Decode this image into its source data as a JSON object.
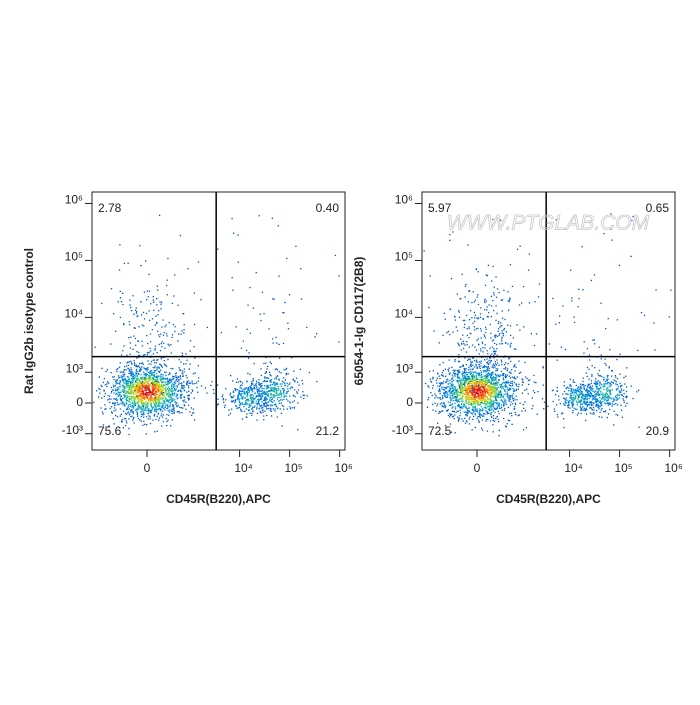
{
  "watermark": "WWW.PTGLAB.COM",
  "chart_data": [
    {
      "type": "flow-quadrant",
      "x_label": "CD45R(B220),APC",
      "y_label": "Rat IgG2b isotype control",
      "xlim": [
        -1760,
        1280000
      ],
      "ylim": [
        -2060,
        1590000
      ],
      "xticks": [
        0,
        {
          "value": 10000,
          "label": "10⁴"
        },
        {
          "value": 100000,
          "label": "10⁵"
        },
        {
          "value": 1000000,
          "label": "10⁶"
        }
      ],
      "yticks": [
        {
          "value": -1000,
          "label": "-10³"
        },
        0,
        {
          "value": 1000,
          "label": "10³"
        },
        {
          "value": 10000,
          "label": "10⁴"
        },
        {
          "value": 100000,
          "label": "10⁵"
        },
        {
          "value": 1000000,
          "label": "10⁶"
        }
      ],
      "gates": {
        "x": 3400,
        "y": 2000
      },
      "values": [
        2.78,
        0.4,
        75.6,
        21.2
      ],
      "value_labels": [
        "2.78",
        "0.40",
        "75.6",
        "21.2"
      ]
    },
    {
      "type": "flow-quadrant",
      "x_label": "CD45R(B220),APC",
      "y_label": "65054-1-Ig CD117(2B8)",
      "xlim": [
        -1760,
        1280000
      ],
      "ylim": [
        -2060,
        1590000
      ],
      "xticks": [
        0,
        {
          "value": 10000,
          "label": "10⁴"
        },
        {
          "value": 100000,
          "label": "10⁵"
        },
        {
          "value": 1000000,
          "label": "10⁶"
        }
      ],
      "yticks": [
        {
          "value": -1000,
          "label": "-10³"
        },
        0,
        {
          "value": 1000,
          "label": "10³"
        },
        {
          "value": 10000,
          "label": "10⁴"
        },
        {
          "value": 100000,
          "label": "10⁵"
        },
        {
          "value": 1000000,
          "label": "10⁶"
        }
      ],
      "gates": {
        "x": 3400,
        "y": 2000
      },
      "values": [
        5.97,
        0.65,
        72.5,
        20.9
      ],
      "value_labels": [
        "5.97",
        "0.65",
        "72.5",
        "20.9"
      ]
    }
  ]
}
